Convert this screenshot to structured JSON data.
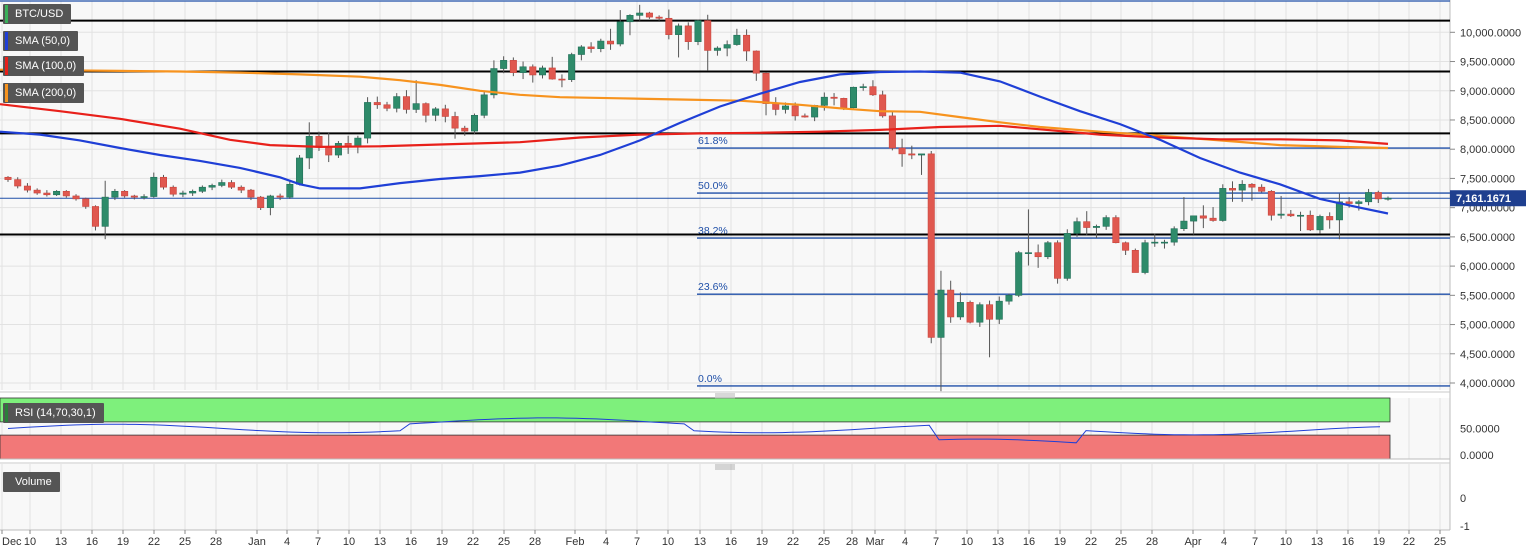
{
  "chart_data": {
    "type": "candlestick",
    "symbol": "BTC/USD",
    "indicators": [
      {
        "label": "SMA (50,0)",
        "color": "#1f3fd6"
      },
      {
        "label": "SMA (100,0)",
        "color": "#e8201a"
      },
      {
        "label": "SMA (200,0)",
        "color": "#f7931e"
      }
    ],
    "price_axis": {
      "ticks": [
        "10,000.0000",
        "9,500.0000",
        "9,000.0000",
        "8,500.0000",
        "8,000.0000",
        "7,500.0000",
        "7,000.0000",
        "6,500.0000",
        "6,000.0000",
        "5,500.0000",
        "5,000.0000",
        "4,500.0000",
        "4,000.0000"
      ],
      "ylim": [
        3900,
        10500
      ]
    },
    "current_price": "7,161.1671",
    "x_axis_labels": [
      "Dec",
      "10",
      "13",
      "16",
      "19",
      "22",
      "25",
      "28",
      "Jan",
      "4",
      "7",
      "10",
      "13",
      "16",
      "19",
      "22",
      "25",
      "28",
      "Feb",
      "4",
      "7",
      "10",
      "13",
      "16",
      "19",
      "22",
      "25",
      "28",
      "Mar",
      "4",
      "7",
      "10",
      "13",
      "16",
      "19",
      "22",
      "25",
      "28",
      "Apr",
      "4",
      "7",
      "10",
      "13",
      "16",
      "19",
      "22",
      "25"
    ],
    "fibonacci": [
      {
        "label": "61.8%",
        "price": 8020
      },
      {
        "label": "50.0%",
        "price": 7250
      },
      {
        "label": "38.2%",
        "price": 6480
      },
      {
        "label": "23.6%",
        "price": 5520
      },
      {
        "label": "0.0%",
        "price": 3950
      }
    ],
    "horizontal_lines": [
      10200,
      9330,
      8270,
      6540
    ],
    "candles": [
      [
        7520,
        7540,
        7440,
        7480
      ],
      [
        7480,
        7520,
        7330,
        7370
      ],
      [
        7370,
        7420,
        7260,
        7300
      ],
      [
        7300,
        7330,
        7220,
        7250
      ],
      [
        7250,
        7300,
        7190,
        7220
      ],
      [
        7220,
        7300,
        7200,
        7280
      ],
      [
        7280,
        7300,
        7170,
        7200
      ],
      [
        7200,
        7230,
        7120,
        7150
      ],
      [
        7150,
        7170,
        6980,
        7020
      ],
      [
        7020,
        7040,
        6610,
        6680
      ],
      [
        6680,
        7460,
        6460,
        7180
      ],
      [
        7180,
        7320,
        7130,
        7280
      ],
      [
        7280,
        7300,
        7170,
        7200
      ],
      [
        7200,
        7220,
        7140,
        7180
      ],
      [
        7180,
        7230,
        7140,
        7190
      ],
      [
        7190,
        7600,
        7170,
        7520
      ],
      [
        7520,
        7560,
        7310,
        7350
      ],
      [
        7350,
        7380,
        7190,
        7230
      ],
      [
        7230,
        7290,
        7180,
        7250
      ],
      [
        7250,
        7310,
        7200,
        7280
      ],
      [
        7280,
        7380,
        7250,
        7350
      ],
      [
        7350,
        7410,
        7300,
        7380
      ],
      [
        7380,
        7480,
        7350,
        7430
      ],
      [
        7430,
        7470,
        7320,
        7350
      ],
      [
        7350,
        7380,
        7250,
        7300
      ],
      [
        7300,
        7320,
        7130,
        7180
      ],
      [
        7180,
        7200,
        6960,
        7000
      ],
      [
        7000,
        7220,
        6870,
        7200
      ],
      [
        7200,
        7240,
        7130,
        7180
      ],
      [
        7180,
        7460,
        7150,
        7400
      ],
      [
        7400,
        7900,
        7380,
        7850
      ],
      [
        7850,
        8460,
        7660,
        8220
      ],
      [
        8220,
        8300,
        7970,
        8030
      ],
      [
        8030,
        8280,
        7780,
        7900
      ],
      [
        7900,
        8140,
        7850,
        8100
      ],
      [
        8100,
        8230,
        7920,
        8050
      ],
      [
        8050,
        8230,
        7930,
        8190
      ],
      [
        8190,
        8890,
        8100,
        8800
      ],
      [
        8800,
        8900,
        8690,
        8760
      ],
      [
        8760,
        8810,
        8650,
        8700
      ],
      [
        8700,
        8960,
        8630,
        8900
      ],
      [
        8900,
        9010,
        8610,
        8680
      ],
      [
        8680,
        9180,
        8620,
        8780
      ],
      [
        8780,
        8800,
        8460,
        8580
      ],
      [
        8580,
        8720,
        8480,
        8690
      ],
      [
        8690,
        8760,
        8460,
        8560
      ],
      [
        8560,
        8640,
        8180,
        8360
      ],
      [
        8360,
        8400,
        8230,
        8310
      ],
      [
        8310,
        8610,
        8250,
        8580
      ],
      [
        8580,
        8980,
        8530,
        8930
      ],
      [
        8930,
        9520,
        8870,
        9380
      ],
      [
        9380,
        9590,
        9300,
        9520
      ],
      [
        9520,
        9570,
        9250,
        9310
      ],
      [
        9310,
        9500,
        9200,
        9410
      ],
      [
        9410,
        9450,
        9140,
        9270
      ],
      [
        9270,
        9430,
        9210,
        9390
      ],
      [
        9390,
        9580,
        9190,
        9200
      ],
      [
        9200,
        9280,
        9060,
        9190
      ],
      [
        9190,
        9650,
        9150,
        9620
      ],
      [
        9620,
        9780,
        9520,
        9750
      ],
      [
        9750,
        9830,
        9650,
        9720
      ],
      [
        9720,
        9890,
        9660,
        9850
      ],
      [
        9850,
        10060,
        9700,
        9800
      ],
      [
        9800,
        10380,
        9760,
        10180
      ],
      [
        10180,
        10310,
        9950,
        10290
      ],
      [
        10290,
        10470,
        10200,
        10330
      ],
      [
        10330,
        10350,
        10230,
        10260
      ],
      [
        10260,
        10290,
        10200,
        10240
      ],
      [
        10240,
        10390,
        9880,
        9960
      ],
      [
        9960,
        10150,
        9570,
        10110
      ],
      [
        10110,
        10170,
        9700,
        9840
      ],
      [
        9840,
        10220,
        9780,
        10200
      ],
      [
        10200,
        10300,
        9350,
        9690
      ],
      [
        9690,
        9760,
        9600,
        9730
      ],
      [
        9730,
        9860,
        9590,
        9790
      ],
      [
        9790,
        10060,
        9770,
        9950
      ],
      [
        9950,
        10050,
        9510,
        9680
      ],
      [
        9680,
        9690,
        9170,
        9300
      ],
      [
        9300,
        9320,
        8580,
        8780
      ],
      [
        8780,
        8890,
        8580,
        8680
      ],
      [
        8680,
        8800,
        8610,
        8740
      ],
      [
        8740,
        8800,
        8490,
        8570
      ],
      [
        8570,
        8610,
        8540,
        8550
      ],
      [
        8550,
        8760,
        8480,
        8750
      ],
      [
        8750,
        8970,
        8660,
        8890
      ],
      [
        8890,
        8960,
        8750,
        8870
      ],
      [
        8870,
        8880,
        8670,
        8710
      ],
      [
        8710,
        9070,
        8700,
        9060
      ],
      [
        9060,
        9120,
        9000,
        9070
      ],
      [
        9070,
        9180,
        8910,
        8930
      ],
      [
        8930,
        9000,
        8540,
        8570
      ],
      [
        8570,
        8660,
        7980,
        8020
      ],
      [
        8020,
        8180,
        7700,
        7920
      ],
      [
        7920,
        8060,
        7830,
        7900
      ],
      [
        7900,
        7920,
        7560,
        7920
      ],
      [
        7920,
        7970,
        4680,
        4780
      ],
      [
        4780,
        5920,
        3860,
        5590
      ],
      [
        5590,
        5750,
        5030,
        5130
      ],
      [
        5130,
        5550,
        5080,
        5380
      ],
      [
        5380,
        5410,
        5020,
        5040
      ],
      [
        5040,
        5380,
        4960,
        5340
      ],
      [
        5340,
        5410,
        4440,
        5090
      ],
      [
        5090,
        5480,
        5010,
        5400
      ],
      [
        5400,
        5530,
        5340,
        5500
      ],
      [
        5500,
        6260,
        5470,
        6230
      ],
      [
        6230,
        6970,
        6010,
        6230
      ],
      [
        6230,
        6370,
        5970,
        6160
      ],
      [
        6160,
        6430,
        6120,
        6400
      ],
      [
        6400,
        6440,
        5700,
        5790
      ],
      [
        5790,
        6630,
        5750,
        6560
      ],
      [
        6560,
        6830,
        6500,
        6760
      ],
      [
        6760,
        6940,
        6530,
        6660
      ],
      [
        6660,
        6710,
        6480,
        6680
      ],
      [
        6680,
        6870,
        6620,
        6830
      ],
      [
        6830,
        6870,
        6390,
        6400
      ],
      [
        6400,
        6420,
        6190,
        6270
      ],
      [
        6270,
        6300,
        5890,
        5890
      ],
      [
        5890,
        6450,
        5860,
        6400
      ],
      [
        6400,
        6560,
        6330,
        6410
      ],
      [
        6410,
        6450,
        6300,
        6410
      ],
      [
        6410,
        6680,
        6350,
        6640
      ],
      [
        6640,
        7180,
        6600,
        6770
      ],
      [
        6770,
        6820,
        6540,
        6860
      ],
      [
        6860,
        7040,
        6650,
        6820
      ],
      [
        6820,
        7010,
        6760,
        6780
      ],
      [
        6780,
        7400,
        6760,
        7330
      ],
      [
        7330,
        7450,
        7100,
        7300
      ],
      [
        7300,
        7470,
        7100,
        7400
      ],
      [
        7400,
        7420,
        7120,
        7350
      ],
      [
        7350,
        7400,
        7260,
        7280
      ],
      [
        7280,
        7300,
        6780,
        6870
      ],
      [
        6870,
        7200,
        6810,
        6890
      ],
      [
        6890,
        6960,
        6840,
        6860
      ],
      [
        6860,
        6930,
        6600,
        6870
      ],
      [
        6870,
        6950,
        6600,
        6620
      ],
      [
        6620,
        6880,
        6560,
        6850
      ],
      [
        6850,
        6920,
        6640,
        6790
      ],
      [
        6790,
        7240,
        6460,
        7100
      ],
      [
        7100,
        7180,
        7000,
        7070
      ],
      [
        7070,
        7130,
        6950,
        7100
      ],
      [
        7100,
        7320,
        7040,
        7260
      ],
      [
        7260,
        7290,
        7080,
        7150
      ],
      [
        7150,
        7190,
        7120,
        7161
      ]
    ],
    "sma_50": [
      [
        0,
        8300
      ],
      [
        40,
        8250
      ],
      [
        80,
        8150
      ],
      [
        120,
        8020
      ],
      [
        160,
        7900
      ],
      [
        200,
        7800
      ],
      [
        240,
        7680
      ],
      [
        280,
        7520
      ],
      [
        300,
        7400
      ],
      [
        320,
        7330
      ],
      [
        360,
        7330
      ],
      [
        400,
        7420
      ],
      [
        440,
        7490
      ],
      [
        480,
        7540
      ],
      [
        520,
        7600
      ],
      [
        560,
        7720
      ],
      [
        600,
        7900
      ],
      [
        640,
        8150
      ],
      [
        680,
        8450
      ],
      [
        720,
        8730
      ],
      [
        760,
        8950
      ],
      [
        800,
        9150
      ],
      [
        840,
        9280
      ],
      [
        880,
        9320
      ],
      [
        920,
        9330
      ],
      [
        960,
        9310
      ],
      [
        1000,
        9160
      ],
      [
        1040,
        8900
      ],
      [
        1080,
        8650
      ],
      [
        1120,
        8430
      ],
      [
        1160,
        8160
      ],
      [
        1200,
        7850
      ],
      [
        1240,
        7600
      ],
      [
        1280,
        7400
      ],
      [
        1320,
        7150
      ],
      [
        1360,
        7000
      ],
      [
        1388,
        6900
      ]
    ],
    "sma_100": [
      [
        0,
        8770
      ],
      [
        60,
        8650
      ],
      [
        120,
        8520
      ],
      [
        180,
        8350
      ],
      [
        230,
        8160
      ],
      [
        270,
        8070
      ],
      [
        320,
        8040
      ],
      [
        380,
        8050
      ],
      [
        440,
        8080
      ],
      [
        520,
        8120
      ],
      [
        580,
        8200
      ],
      [
        640,
        8250
      ],
      [
        700,
        8270
      ],
      [
        760,
        8280
      ],
      [
        820,
        8300
      ],
      [
        880,
        8330
      ],
      [
        940,
        8380
      ],
      [
        1000,
        8400
      ],
      [
        1040,
        8340
      ],
      [
        1100,
        8250
      ],
      [
        1160,
        8200
      ],
      [
        1220,
        8170
      ],
      [
        1280,
        8170
      ],
      [
        1340,
        8150
      ],
      [
        1388,
        8090
      ]
    ],
    "sma_200": [
      [
        0,
        9360
      ],
      [
        60,
        9350
      ],
      [
        120,
        9340
      ],
      [
        180,
        9330
      ],
      [
        240,
        9310
      ],
      [
        300,
        9280
      ],
      [
        360,
        9240
      ],
      [
        400,
        9180
      ],
      [
        440,
        9100
      ],
      [
        480,
        9000
      ],
      [
        520,
        8930
      ],
      [
        560,
        8890
      ],
      [
        620,
        8870
      ],
      [
        680,
        8850
      ],
      [
        740,
        8830
      ],
      [
        800,
        8760
      ],
      [
        840,
        8700
      ],
      [
        880,
        8650
      ],
      [
        920,
        8640
      ],
      [
        960,
        8550
      ],
      [
        1000,
        8460
      ],
      [
        1040,
        8380
      ],
      [
        1100,
        8300
      ],
      [
        1160,
        8230
      ],
      [
        1220,
        8150
      ],
      [
        1280,
        8070
      ],
      [
        1340,
        8040
      ],
      [
        1388,
        8020
      ]
    ],
    "rsi": {
      "label": "RSI (14,70,30,1)",
      "ticks": [
        "50.0000",
        "0.0000"
      ],
      "ylim": [
        0,
        100
      ],
      "overbought": 70,
      "oversold": 30
    },
    "volume": {
      "label": "Volume",
      "ticks": [
        "0",
        "-1"
      ]
    }
  }
}
